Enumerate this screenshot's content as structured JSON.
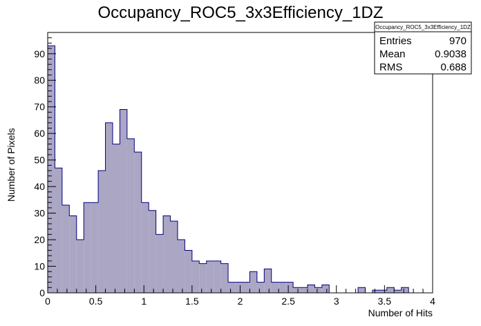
{
  "chart_data": {
    "type": "bar",
    "title": "Occupancy_ROC5_3x3Efficiency_1DZ",
    "xlabel": "Number of Hits",
    "ylabel": "Number of Pixels",
    "xlim": [
      0,
      4
    ],
    "ylim": [
      0,
      98
    ],
    "bin_width": 0.075,
    "x_ticks": [
      "0",
      "0.5",
      "1",
      "1.5",
      "2",
      "2.5",
      "3",
      "3.5",
      "4"
    ],
    "x_tick_values": [
      0,
      0.5,
      1,
      1.5,
      2,
      2.5,
      3,
      3.5,
      4
    ],
    "y_ticks": [
      "0",
      "10",
      "20",
      "30",
      "40",
      "50",
      "60",
      "70",
      "80",
      "90"
    ],
    "y_tick_values": [
      0,
      10,
      20,
      30,
      40,
      50,
      60,
      70,
      80,
      90
    ],
    "values": [
      93,
      47,
      33,
      29,
      20,
      34,
      34,
      46,
      64,
      56,
      69,
      58,
      53,
      34,
      31,
      22,
      29,
      27,
      20,
      16,
      12,
      11,
      12,
      12,
      11,
      4,
      4,
      4,
      8,
      4,
      9,
      4,
      4,
      4,
      2,
      2,
      3,
      2,
      3,
      0,
      0,
      0,
      0,
      2,
      0,
      1,
      1,
      2,
      1,
      2
    ],
    "fill_color": "#aaa6c3",
    "line_color": "#000080",
    "stats": {
      "name": "Occupancy_ROC5_3x3Efficiency_1DZ",
      "rows": [
        {
          "label": "Entries",
          "value": "970"
        },
        {
          "label": "Mean",
          "value": "0.9038"
        },
        {
          "label": "RMS",
          "value": "0.688"
        }
      ]
    }
  }
}
